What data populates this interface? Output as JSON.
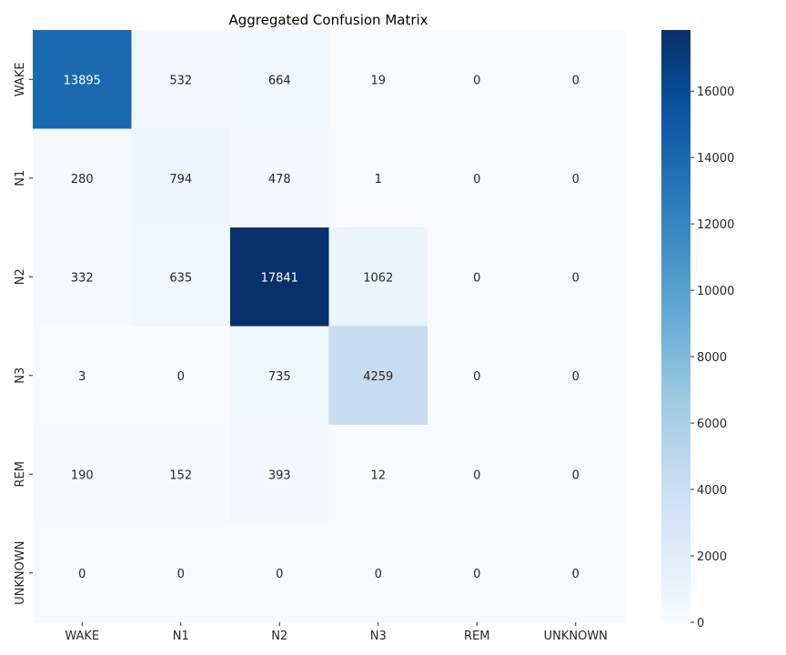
{
  "chart_data": {
    "type": "heatmap",
    "title": "Aggregated Confusion Matrix",
    "xlabel": "",
    "ylabel": "",
    "x_categories": [
      "WAKE",
      "N1",
      "N2",
      "N3",
      "REM",
      "UNKNOWN"
    ],
    "y_categories": [
      "WAKE",
      "N1",
      "N2",
      "N3",
      "REM",
      "UNKNOWN"
    ],
    "values": [
      [
        13895,
        532,
        664,
        19,
        0,
        0
      ],
      [
        280,
        794,
        478,
        1,
        0,
        0
      ],
      [
        332,
        635,
        17841,
        1062,
        0,
        0
      ],
      [
        3,
        0,
        735,
        4259,
        0,
        0
      ],
      [
        190,
        152,
        393,
        12,
        0,
        0
      ],
      [
        0,
        0,
        0,
        0,
        0,
        0
      ]
    ],
    "colormap": "Blues",
    "colorbar": {
      "range": [
        0,
        17841
      ],
      "ticks": [
        0,
        2000,
        4000,
        6000,
        8000,
        10000,
        12000,
        14000,
        16000
      ]
    },
    "colors": {
      "low": "#f7fbff",
      "high": "#08306b"
    }
  }
}
